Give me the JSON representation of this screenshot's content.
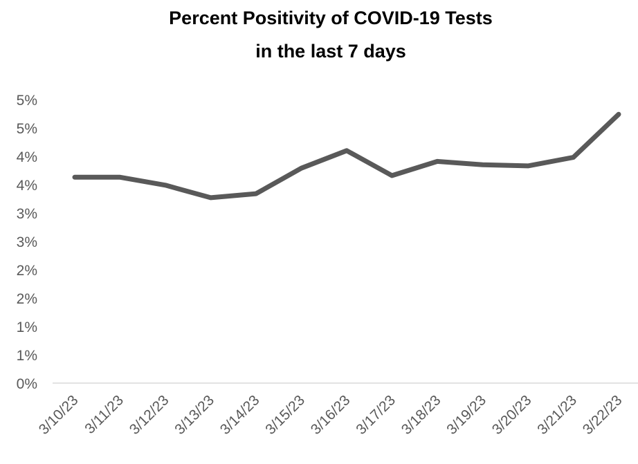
{
  "chart_data": {
    "type": "line",
    "title": [
      "Percent Positivity of COVID-19 Tests",
      "in the last 7 days"
    ],
    "xlabel": "",
    "ylabel": "",
    "categories": [
      "3/10/23",
      "3/11/23",
      "3/12/23",
      "3/13/23",
      "3/14/23",
      "3/15/23",
      "3/16/23",
      "3/17/23",
      "3/18/23",
      "3/19/23",
      "3/20/23",
      "3/21/23",
      "3/22/23"
    ],
    "series": [
      {
        "values": [
          3.63,
          3.63,
          3.49,
          3.27,
          3.34,
          3.79,
          4.1,
          3.66,
          3.91,
          3.85,
          3.83,
          3.98,
          4.74
        ],
        "color": "#595959"
      }
    ],
    "ylim": [
      0,
      5
    ],
    "yticks": [
      {
        "value": 0.0,
        "label": "0%"
      },
      {
        "value": 0.5,
        "label": "1%"
      },
      {
        "value": 1.0,
        "label": "1%"
      },
      {
        "value": 1.5,
        "label": "2%"
      },
      {
        "value": 2.0,
        "label": "2%"
      },
      {
        "value": 2.5,
        "label": "3%"
      },
      {
        "value": 3.0,
        "label": "3%"
      },
      {
        "value": 3.5,
        "label": "4%"
      },
      {
        "value": 4.0,
        "label": "4%"
      },
      {
        "value": 4.5,
        "label": "5%"
      },
      {
        "value": 5.0,
        "label": "5%"
      }
    ],
    "grid": false,
    "legend": "none",
    "axis_color": "#d9d9d9"
  }
}
